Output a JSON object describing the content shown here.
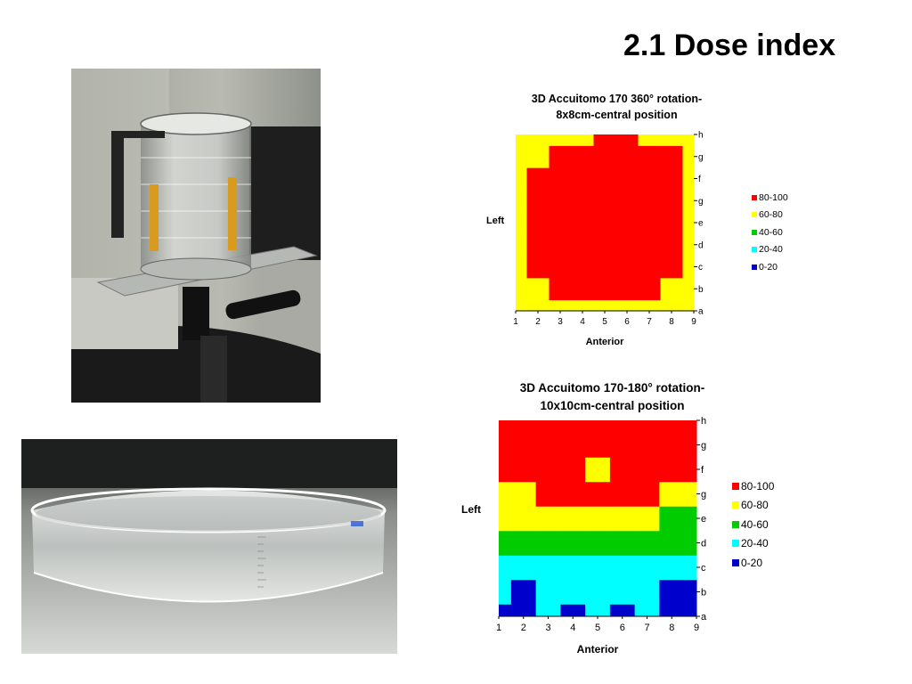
{
  "slide": {
    "title": "2.1 Dose index"
  },
  "photos": [
    {
      "name": "phantom-on-stand-photo"
    },
    {
      "name": "acrylic-dish-photo"
    }
  ],
  "chart_data": [
    {
      "type": "heatmap",
      "title_line1": "3D Accuitomo 170 360° rotation-",
      "title_line2": "8x8cm-central position",
      "xlabel": "Anterior",
      "ylabel": "Left",
      "x": [
        1,
        2,
        3,
        4,
        5,
        6,
        7,
        8,
        9
      ],
      "y": [
        "a",
        "b",
        "c",
        "d",
        "e",
        "g",
        "f",
        "g",
        "h"
      ],
      "legend": [
        {
          "label": "80-100",
          "color": "#ff0000"
        },
        {
          "label": "60-80",
          "color": "#ffff00"
        },
        {
          "label": "40-60",
          "color": "#00cc00"
        },
        {
          "label": "20-40",
          "color": "#00ffff"
        },
        {
          "label": "0-20",
          "color": "#0000cc"
        }
      ],
      "values": [
        [
          60,
          60,
          60,
          60,
          60,
          60,
          60,
          60,
          60
        ],
        [
          60,
          60,
          80,
          80,
          80,
          80,
          80,
          60,
          60
        ],
        [
          60,
          80,
          80,
          80,
          80,
          80,
          80,
          80,
          60
        ],
        [
          60,
          80,
          80,
          80,
          80,
          80,
          80,
          80,
          60
        ],
        [
          60,
          80,
          80,
          80,
          80,
          80,
          80,
          80,
          60
        ],
        [
          60,
          80,
          80,
          80,
          80,
          80,
          80,
          80,
          60
        ],
        [
          60,
          80,
          80,
          80,
          80,
          80,
          80,
          80,
          60
        ],
        [
          60,
          60,
          80,
          80,
          80,
          80,
          80,
          80,
          60
        ],
        [
          60,
          60,
          60,
          60,
          80,
          80,
          60,
          60,
          60
        ]
      ]
    },
    {
      "type": "heatmap",
      "title_line1": "3D Accuitomo 170-180° rotation-",
      "title_line2": "10x10cm-central position",
      "xlabel": "Anterior",
      "ylabel": "Left",
      "x": [
        1,
        2,
        3,
        4,
        5,
        6,
        7,
        8,
        9
      ],
      "y": [
        "a",
        "b",
        "c",
        "d",
        "e",
        "g",
        "f",
        "g",
        "h"
      ],
      "legend": [
        {
          "label": "80-100",
          "color": "#ff0000"
        },
        {
          "label": "60-80",
          "color": "#ffff00"
        },
        {
          "label": "40-60",
          "color": "#00cc00"
        },
        {
          "label": "20-40",
          "color": "#00ffff"
        },
        {
          "label": "0-20",
          "color": "#0000cc"
        }
      ],
      "values": [
        [
          0,
          0,
          20,
          0,
          20,
          0,
          20,
          0,
          0
        ],
        [
          20,
          0,
          20,
          20,
          20,
          20,
          20,
          0,
          0
        ],
        [
          20,
          20,
          20,
          20,
          20,
          20,
          20,
          20,
          20
        ],
        [
          40,
          40,
          40,
          40,
          40,
          40,
          40,
          40,
          40
        ],
        [
          60,
          60,
          60,
          60,
          60,
          60,
          60,
          40,
          40
        ],
        [
          60,
          60,
          80,
          80,
          80,
          80,
          80,
          60,
          60
        ],
        [
          80,
          80,
          80,
          80,
          60,
          80,
          80,
          80,
          80
        ],
        [
          80,
          80,
          80,
          80,
          80,
          80,
          80,
          80,
          80
        ],
        [
          80,
          80,
          80,
          80,
          80,
          80,
          80,
          80,
          80
        ]
      ]
    }
  ]
}
